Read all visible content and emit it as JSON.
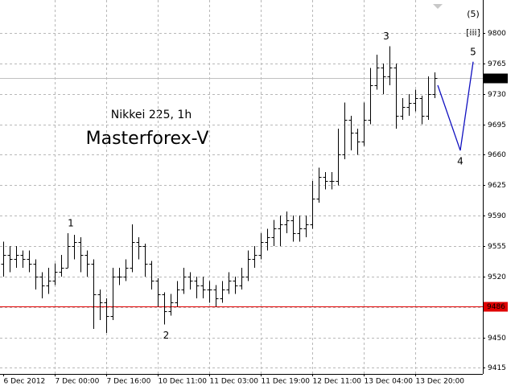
{
  "chart_data": {
    "type": "ohlc",
    "title": "Nikkei 225, 1h",
    "subtitle": "Masterforex-V",
    "subtitle_color": "#e00000",
    "grid": true,
    "color": "#000000",
    "categories": [
      "6 Dec 2012",
      null,
      null,
      null,
      null,
      null,
      null,
      null,
      "7 Dec 00:00",
      null,
      null,
      null,
      null,
      null,
      null,
      null,
      "7 Dec 16:00",
      null,
      null,
      null,
      null,
      null,
      null,
      null,
      "10 Dec 11:00",
      null,
      null,
      null,
      null,
      null,
      null,
      null,
      "11 Dec 03:00",
      null,
      null,
      null,
      null,
      null,
      null,
      null,
      "11 Dec 19:00",
      null,
      null,
      null,
      null,
      null,
      null,
      null,
      "12 Dec 11:00",
      null,
      null,
      null,
      null,
      null,
      null,
      null,
      "13 Dec 04:00",
      null,
      null,
      null,
      null,
      null,
      null,
      null,
      "13 Dec 20:00",
      null,
      null,
      null
    ],
    "open": [
      9535,
      9545,
      9540,
      9545,
      9540,
      9535,
      9520,
      9510,
      9515,
      9525,
      9530,
      9555,
      9560,
      9545,
      9535,
      9500,
      9490,
      9475,
      9520,
      9520,
      9530,
      9560,
      9555,
      9535,
      9515,
      9500,
      9480,
      9490,
      9505,
      9520,
      9515,
      9510,
      9505,
      9505,
      9495,
      9505,
      9515,
      9510,
      9520,
      9540,
      9545,
      9560,
      9565,
      9575,
      9580,
      9585,
      9570,
      9575,
      9580,
      9610,
      9635,
      9630,
      9630,
      9660,
      9700,
      9685,
      9675,
      9700,
      9740,
      9760,
      9750,
      9760,
      9705,
      9715,
      9720,
      9725,
      9705,
      9730
    ],
    "high": [
      9560,
      9555,
      9555,
      9550,
      9550,
      9540,
      9525,
      9530,
      9535,
      9545,
      9570,
      9568,
      9565,
      9550,
      9540,
      9505,
      9495,
      9530,
      9530,
      9540,
      9580,
      9565,
      9558,
      9538,
      9518,
      9502,
      9500,
      9515,
      9530,
      9525,
      9520,
      9520,
      9515,
      9510,
      9515,
      9525,
      9520,
      9530,
      9550,
      9555,
      9570,
      9575,
      9585,
      9590,
      9595,
      9590,
      9590,
      9590,
      9630,
      9645,
      9640,
      9640,
      9690,
      9720,
      9705,
      9690,
      9720,
      9760,
      9775,
      9765,
      9785,
      9765,
      9725,
      9730,
      9735,
      9728,
      9750,
      9755
    ],
    "low": [
      9520,
      9525,
      9530,
      9530,
      9525,
      9505,
      9495,
      9500,
      9510,
      9520,
      9530,
      9540,
      9525,
      9520,
      9460,
      9470,
      9455,
      9470,
      9510,
      9515,
      9525,
      9540,
      9520,
      9505,
      9485,
      9465,
      9475,
      9485,
      9500,
      9505,
      9495,
      9495,
      9490,
      9485,
      9490,
      9500,
      9500,
      9505,
      9515,
      9530,
      9540,
      9550,
      9555,
      9555,
      9570,
      9560,
      9560,
      9565,
      9575,
      9605,
      9620,
      9620,
      9625,
      9655,
      9665,
      9660,
      9670,
      9695,
      9735,
      9730,
      9740,
      9690,
      9700,
      9705,
      9710,
      9695,
      9700,
      9725
    ],
    "close": [
      9545,
      9540,
      9545,
      9540,
      9535,
      9520,
      9510,
      9515,
      9525,
      9530,
      9555,
      9560,
      9545,
      9535,
      9500,
      9490,
      9475,
      9520,
      9520,
      9530,
      9560,
      9555,
      9535,
      9515,
      9500,
      9480,
      9490,
      9505,
      9520,
      9515,
      9510,
      9505,
      9505,
      9495,
      9505,
      9515,
      9510,
      9520,
      9540,
      9545,
      9560,
      9565,
      9575,
      9580,
      9585,
      9570,
      9575,
      9580,
      9610,
      9635,
      9630,
      9630,
      9660,
      9700,
      9685,
      9675,
      9700,
      9740,
      9760,
      9750,
      9760,
      9705,
      9715,
      9720,
      9725,
      9705,
      9730,
      9748
    ],
    "ylim": [
      9408,
      9838
    ],
    "yticks": [
      9800,
      9765,
      9730,
      9695,
      9660,
      9625,
      9590,
      9555,
      9520,
      9485,
      9450,
      9415
    ],
    "price_lines": [
      {
        "value": 9748,
        "color": "#c0c0c0",
        "label_color": "#000000"
      },
      {
        "value": 9486,
        "color": "#e00000",
        "label_color": "#e00000"
      }
    ],
    "projection": {
      "color": "#1010c0",
      "x": [
        67.5,
        71,
        73
      ],
      "values": [
        9740,
        9665,
        9767
      ]
    },
    "annotations": [
      {
        "label": "1",
        "x": 10.5,
        "value": 9570,
        "position": "above"
      },
      {
        "label": "2",
        "x": 25.3,
        "value": 9465,
        "position": "below"
      },
      {
        "label": "3",
        "x": 59.5,
        "value": 9785,
        "position": "above"
      },
      {
        "label": "4",
        "x": 71,
        "value": 9665,
        "position": "below"
      },
      {
        "label": "5",
        "x": 73,
        "value": 9767,
        "position": "above"
      }
    ],
    "wave_labels": [
      "(5)",
      "[iii]"
    ]
  }
}
